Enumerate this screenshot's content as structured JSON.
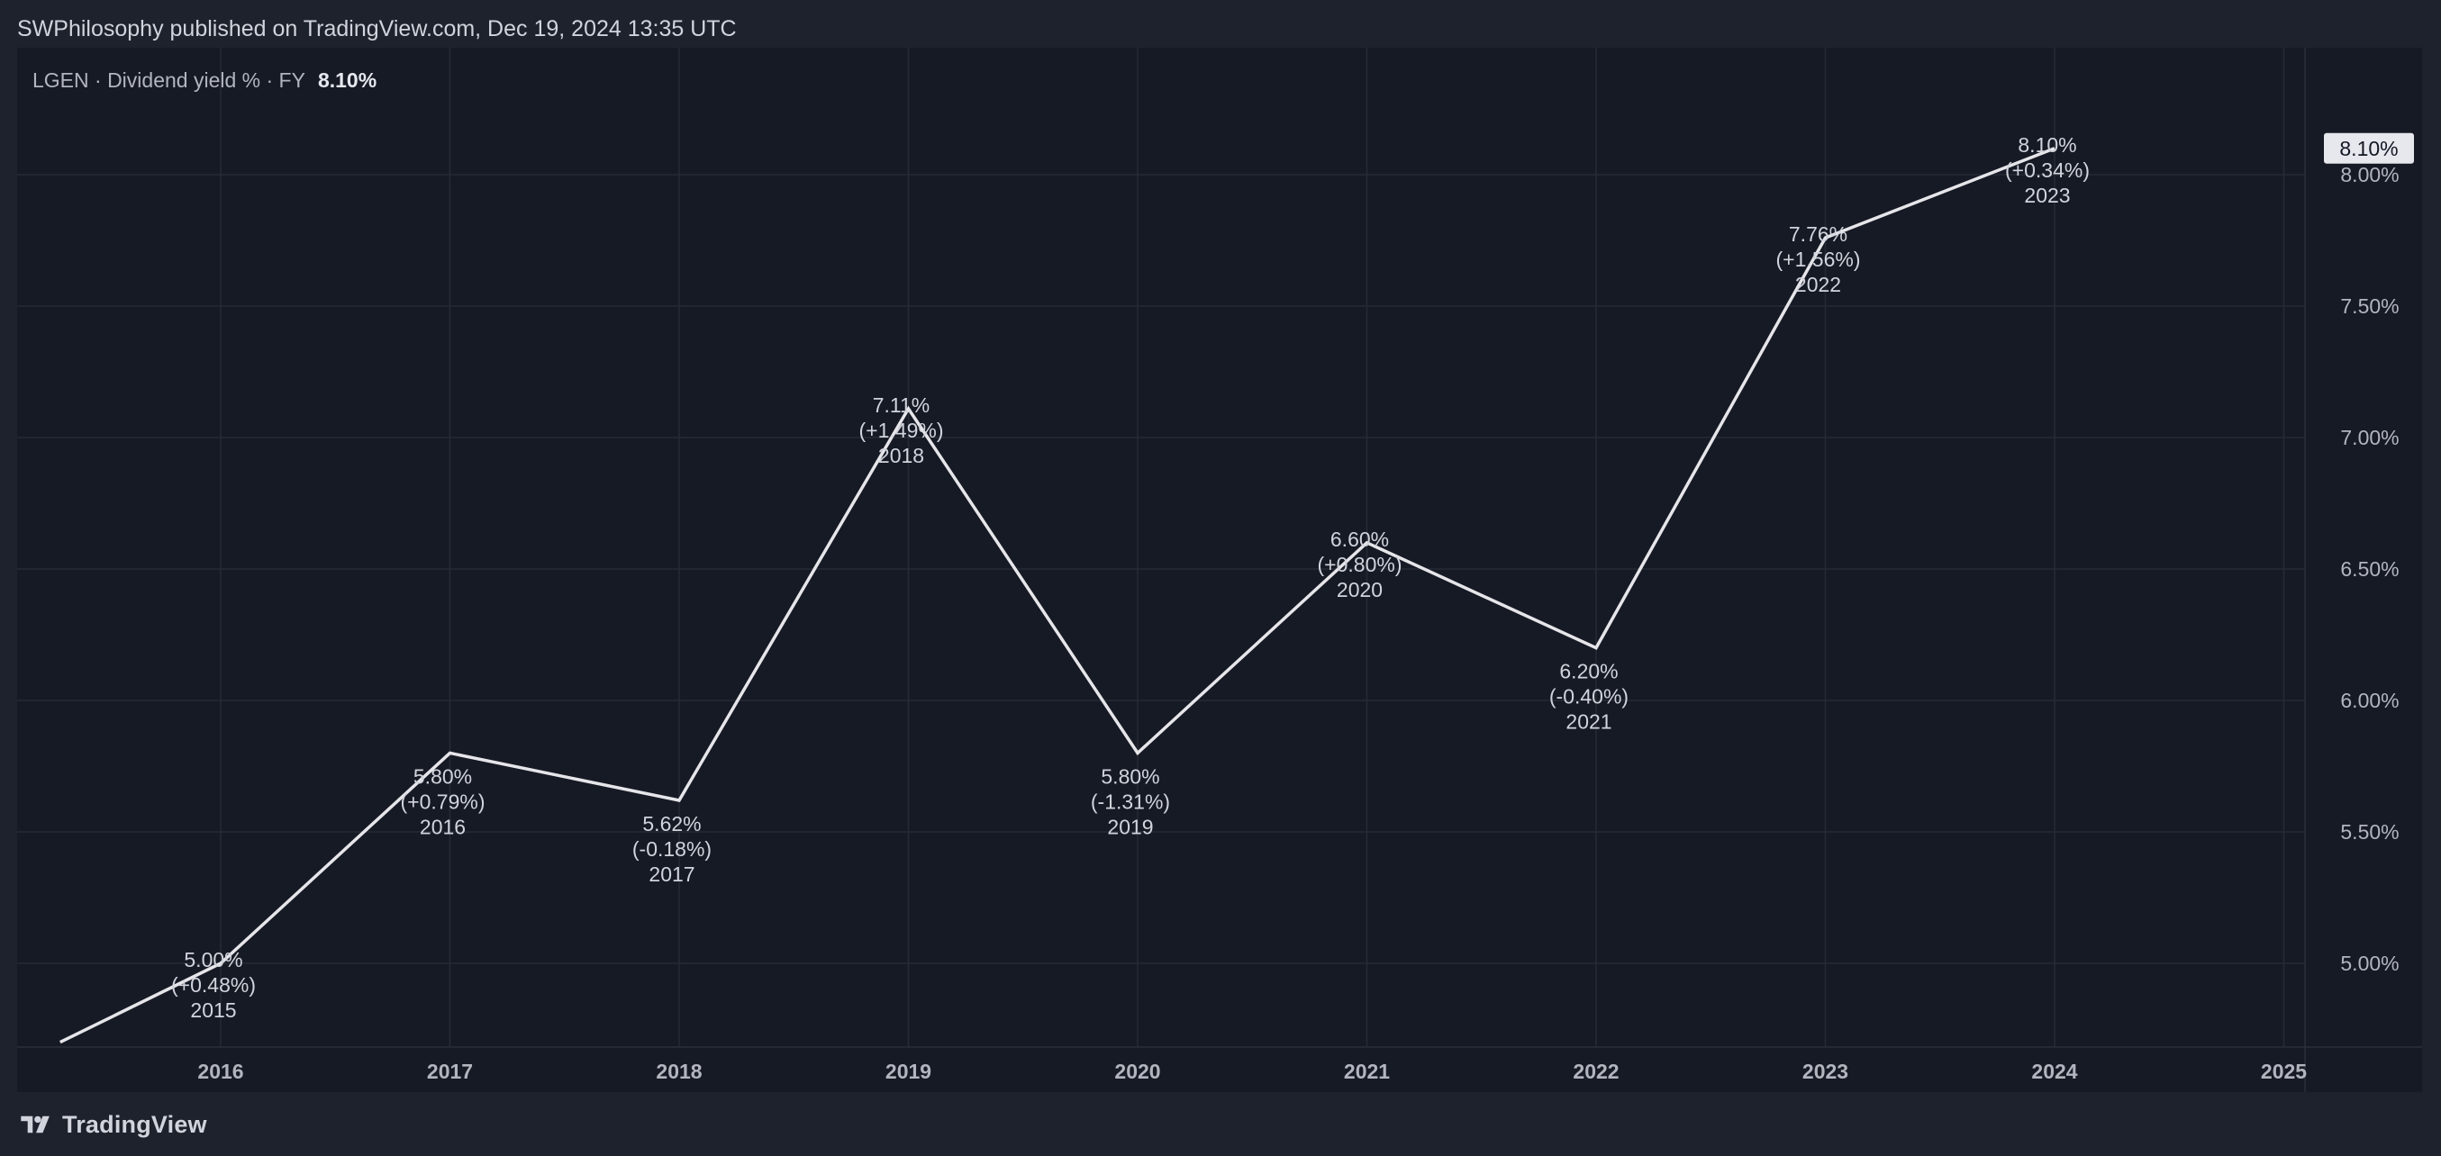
{
  "header": {
    "published_text": "SWPhilosophy published on TradingView.com, Dec 19, 2024 13:35 UTC"
  },
  "footer": {
    "brand": "TradingView",
    "logo_icon": "tradingview-logo-icon"
  },
  "legend": {
    "text": "LGEN · Dividend yield % · FY",
    "value": "8.10%"
  },
  "colors": {
    "page_bg": "#1e222d",
    "plot_bg": "#161a25",
    "line": "#e6e6ea",
    "grid": "#262a35",
    "text": "#b2b5be",
    "price_badge_bg": "#e6e8ee",
    "price_badge_text": "#131722"
  },
  "chart_data": {
    "type": "line",
    "x_ticks": [
      "2016",
      "2017",
      "2018",
      "2019",
      "2020",
      "2021",
      "2022",
      "2023",
      "2024",
      "2025"
    ],
    "y_ticks": [
      "5.00%",
      "5.50%",
      "6.00%",
      "6.50%",
      "7.00%",
      "7.50%",
      "8.00%"
    ],
    "ylim": [
      4.7,
      8.2
    ],
    "xlim": [
      2015.35,
      2025.45
    ],
    "series": [
      {
        "points": [
          {
            "x": 2015.3,
            "y": 4.7
          },
          {
            "x": 2016.0,
            "y": 5.0,
            "label_value": "5.00%",
            "label_change": "(+0.48%)",
            "label_year": "2015"
          },
          {
            "x": 2017.0,
            "y": 5.8,
            "label_value": "5.80%",
            "label_change": "(+0.79%)",
            "label_year": "2016"
          },
          {
            "x": 2018.0,
            "y": 5.62,
            "label_value": "5.62%",
            "label_change": "(-0.18%)",
            "label_year": "2017"
          },
          {
            "x": 2019.0,
            "y": 7.11,
            "label_value": "7.11%",
            "label_change": "(+1.49%)",
            "label_year": "2018"
          },
          {
            "x": 2020.0,
            "y": 5.8,
            "label_value": "5.80%",
            "label_change": "(-1.31%)",
            "label_year": "2019"
          },
          {
            "x": 2021.0,
            "y": 6.6,
            "label_value": "6.60%",
            "label_change": "(+0.80%)",
            "label_year": "2020"
          },
          {
            "x": 2022.0,
            "y": 6.2,
            "label_value": "6.20%",
            "label_change": "(-0.40%)",
            "label_year": "2021"
          },
          {
            "x": 2023.0,
            "y": 7.76,
            "label_value": "7.76%",
            "label_change": "(+1.56%)",
            "label_year": "2022"
          },
          {
            "x": 2024.0,
            "y": 8.1,
            "label_value": "8.10%",
            "label_change": "(+0.34%)",
            "label_year": "2023"
          }
        ]
      }
    ],
    "last_value_badge": "8.10%",
    "grid": true
  }
}
